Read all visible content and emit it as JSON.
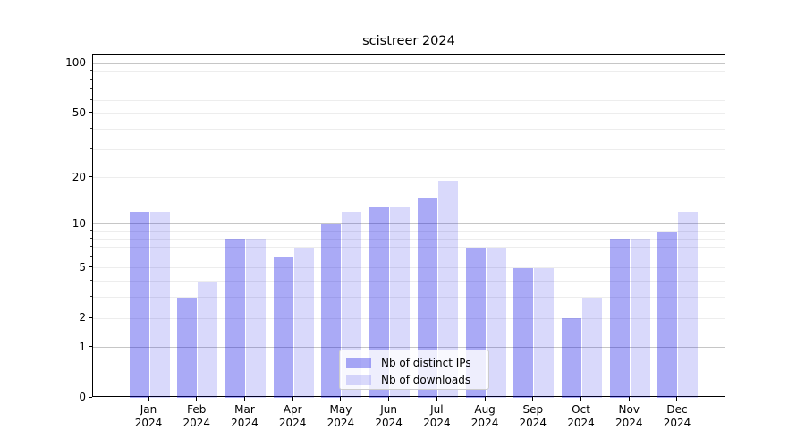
{
  "figure": {
    "title": "scistreer 2024"
  },
  "chart_data": {
    "type": "bar",
    "title": "scistreer 2024",
    "categories": [
      "Jan",
      "Feb",
      "Mar",
      "Apr",
      "May",
      "Jun",
      "Jul",
      "Aug",
      "Sep",
      "Oct",
      "Nov",
      "Dec"
    ],
    "category_year": "2024",
    "series": [
      {
        "name": "Nb of distinct IPs",
        "color_hex": "#aaaaf6",
        "fill": "rgba(10,10,230,0.345)",
        "values": [
          12,
          3,
          8,
          6,
          10,
          13,
          15,
          7,
          5,
          2,
          8,
          9
        ]
      },
      {
        "name": "Nb of downloads",
        "color_hex": "#d9d9fb",
        "fill": "rgba(10,10,230,0.155)",
        "values": [
          12,
          4,
          8,
          7,
          12,
          13,
          19,
          7,
          5,
          3,
          8,
          12
        ]
      }
    ],
    "xlabel": "",
    "ylabel": "",
    "yscale": "log1p",
    "ylim": [
      0,
      114
    ],
    "ytick_values": [
      0,
      1,
      2,
      5,
      10,
      20,
      50,
      100
    ],
    "ytick_labels": [
      "0",
      "1",
      "2",
      "5",
      "10",
      "20",
      "50",
      "100"
    ],
    "grid_major_values": [
      1,
      10,
      100
    ],
    "grid_minor_values": [
      2,
      3,
      4,
      5,
      6,
      7,
      8,
      9,
      20,
      30,
      40,
      50,
      60,
      70,
      80,
      90
    ],
    "minor_tick_values": [
      3,
      4,
      6,
      7,
      8,
      9,
      30,
      40,
      60,
      70,
      80,
      90
    ],
    "grid": "horizontal",
    "legend_position": "lower center",
    "colors": {
      "grid_major": "#c6c6c6",
      "grid_minor": "#ededed",
      "axis": "#000000",
      "legend_border": "#cccccc"
    }
  }
}
